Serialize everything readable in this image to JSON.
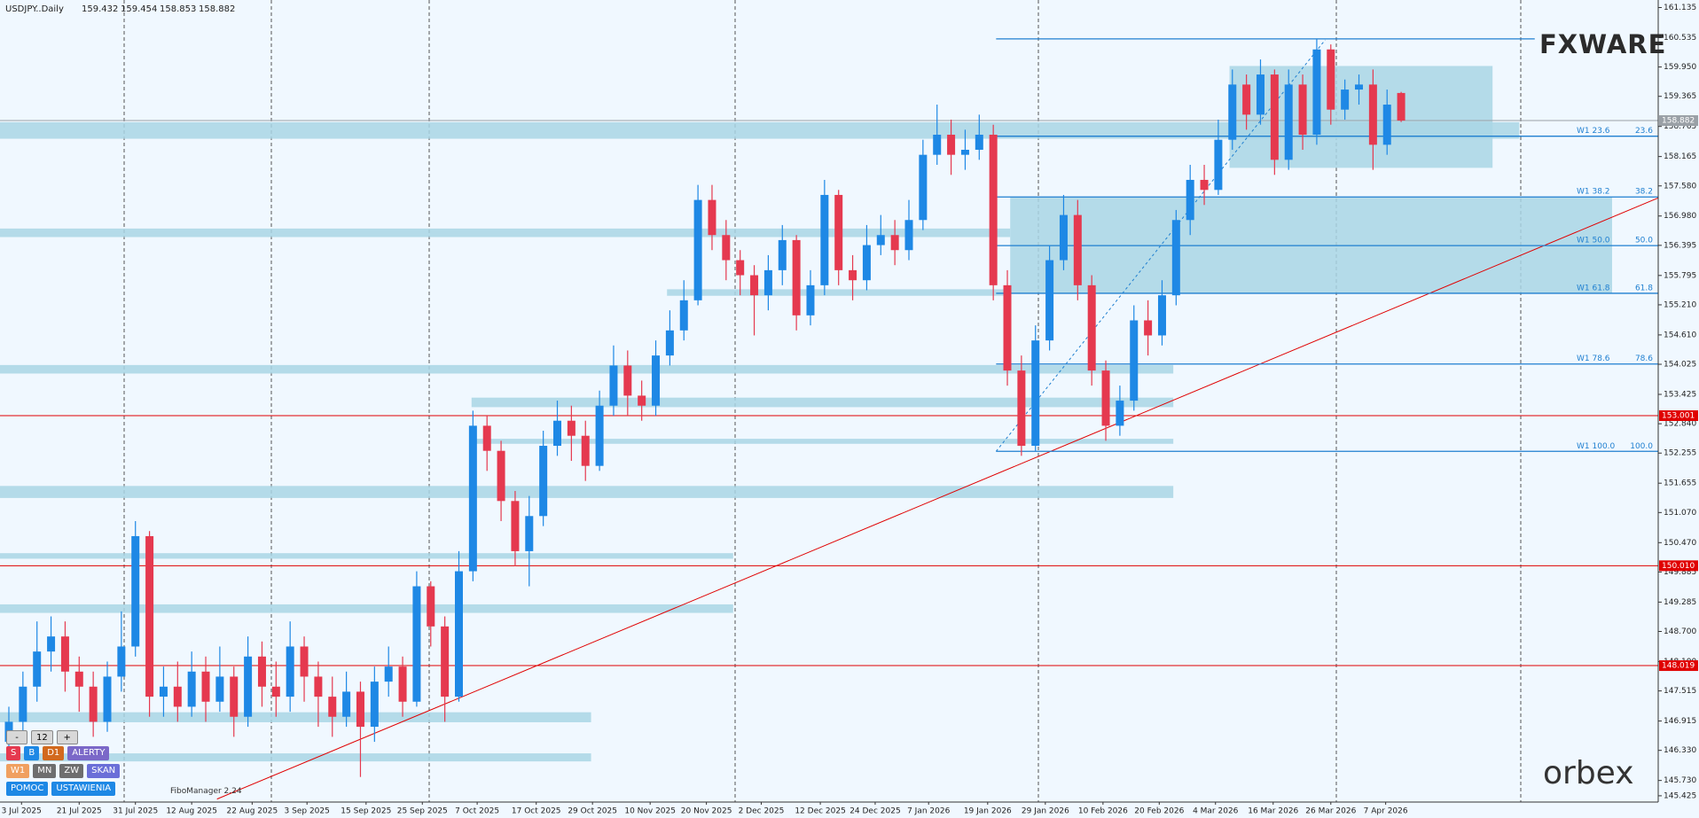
{
  "chart_data": {
    "type": "candlestick",
    "title": "USDJPY..Daily",
    "up_color": "#1e88e5",
    "down_color": "#e5394f",
    "open": [
      146.5,
      146.9,
      147.6,
      148.3,
      148.6,
      147.9,
      147.6,
      146.9,
      147.8,
      148.4,
      150.6,
      147.4,
      147.6,
      147.2,
      147.9,
      147.3,
      147.8,
      147.0,
      148.2,
      147.6,
      147.4,
      148.4,
      147.8,
      147.4,
      147.0,
      147.5,
      146.8,
      147.7,
      148.0,
      147.3,
      149.6,
      148.8,
      147.4,
      149.9,
      152.8,
      152.3,
      151.3,
      150.3,
      151.0,
      152.4,
      152.9,
      152.6,
      152.0,
      153.2,
      154.0,
      153.4,
      153.2,
      154.2,
      154.7,
      155.3,
      157.3,
      156.6,
      156.1,
      155.8,
      155.4,
      155.9,
      156.5,
      155.0,
      155.6,
      157.4,
      155.9,
      155.7,
      156.4,
      156.6,
      156.3,
      156.9,
      158.2,
      158.6,
      158.2,
      158.3,
      158.6,
      155.6,
      153.9,
      152.4,
      154.5,
      156.1,
      157.0,
      155.6,
      153.9,
      152.8,
      153.3,
      154.9,
      154.6,
      155.4,
      156.9,
      157.7,
      157.5,
      158.5,
      159.6,
      159.0,
      159.8,
      158.1,
      159.6,
      158.6,
      160.3,
      159.1,
      159.5,
      159.6,
      158.4,
      159.432
    ],
    "high": [
      147.2,
      147.9,
      148.9,
      149.0,
      148.9,
      148.2,
      147.9,
      148.1,
      149.1,
      150.9,
      150.7,
      148.0,
      148.1,
      148.3,
      148.2,
      148.4,
      148.0,
      148.6,
      148.5,
      148.1,
      148.9,
      148.6,
      148.1,
      147.8,
      147.9,
      147.7,
      148.0,
      148.4,
      148.2,
      149.9,
      149.7,
      149.0,
      150.3,
      153.1,
      153.0,
      152.5,
      151.5,
      151.4,
      152.7,
      153.3,
      153.2,
      152.9,
      153.5,
      154.4,
      154.3,
      153.7,
      154.5,
      155.1,
      155.7,
      157.6,
      157.6,
      156.9,
      156.3,
      156.0,
      156.2,
      156.8,
      156.6,
      155.9,
      157.7,
      157.5,
      156.2,
      156.8,
      157.0,
      156.9,
      157.3,
      158.5,
      159.2,
      158.9,
      158.7,
      159.0,
      158.8,
      155.9,
      154.2,
      154.8,
      156.4,
      157.4,
      157.3,
      155.8,
      154.1,
      153.6,
      155.2,
      155.3,
      155.7,
      157.1,
      158.0,
      158.0,
      158.9,
      159.9,
      159.8,
      160.1,
      159.9,
      159.9,
      159.8,
      160.5,
      160.4,
      159.7,
      159.8,
      159.9,
      159.5,
      159.454
    ],
    "low": [
      146.2,
      146.6,
      147.3,
      147.9,
      147.5,
      147.1,
      146.6,
      146.7,
      147.5,
      148.2,
      147.0,
      147.0,
      146.9,
      147.0,
      146.9,
      147.1,
      146.6,
      146.8,
      147.2,
      147.0,
      147.1,
      147.3,
      146.8,
      146.6,
      146.8,
      145.8,
      146.5,
      147.4,
      147.0,
      147.2,
      148.4,
      146.9,
      147.3,
      149.7,
      151.9,
      150.9,
      150.0,
      149.6,
      150.8,
      152.2,
      152.1,
      151.7,
      151.9,
      153.0,
      153.0,
      152.9,
      153.0,
      154.0,
      154.5,
      155.2,
      156.3,
      155.7,
      155.4,
      154.6,
      155.1,
      155.6,
      154.7,
      154.8,
      155.4,
      155.6,
      155.3,
      155.5,
      156.2,
      156.0,
      156.1,
      156.7,
      158.0,
      157.8,
      157.9,
      158.1,
      155.3,
      153.6,
      152.2,
      152.3,
      154.3,
      155.9,
      155.3,
      153.6,
      152.5,
      152.6,
      153.1,
      154.2,
      154.4,
      155.2,
      156.6,
      157.2,
      157.4,
      158.3,
      158.7,
      158.8,
      157.8,
      157.9,
      158.3,
      158.4,
      158.8,
      158.9,
      159.2,
      157.9,
      158.2,
      158.853
    ],
    "close": [
      146.9,
      147.6,
      148.3,
      148.6,
      147.9,
      147.6,
      146.9,
      147.8,
      148.4,
      150.6,
      147.4,
      147.6,
      147.2,
      147.9,
      147.3,
      147.8,
      147.0,
      148.2,
      147.6,
      147.4,
      148.4,
      147.8,
      147.4,
      147.0,
      147.5,
      146.8,
      147.7,
      148.0,
      147.3,
      149.6,
      148.8,
      147.4,
      149.9,
      152.8,
      152.3,
      151.3,
      150.3,
      151.0,
      152.4,
      152.9,
      152.6,
      152.0,
      153.2,
      154.0,
      153.4,
      153.2,
      154.2,
      154.7,
      155.3,
      157.3,
      156.6,
      156.1,
      155.8,
      155.4,
      155.9,
      156.5,
      155.0,
      155.6,
      157.4,
      155.9,
      155.7,
      156.4,
      156.6,
      156.3,
      156.9,
      158.2,
      158.6,
      158.2,
      158.3,
      158.6,
      155.6,
      153.9,
      152.4,
      154.5,
      156.1,
      157.0,
      155.6,
      153.9,
      152.8,
      153.3,
      154.9,
      154.6,
      155.4,
      156.9,
      157.7,
      157.5,
      158.5,
      159.6,
      159.0,
      159.8,
      158.1,
      159.6,
      158.6,
      160.3,
      159.1,
      159.5,
      159.6,
      158.4,
      159.2,
      158.882
    ],
    "xlim": [
      -0.63,
      117.28
    ],
    "xticks": [
      {
        "value": 0.9,
        "label": "3 Jul 2025"
      },
      {
        "value": 5.0,
        "label": "21 Jul 2025"
      },
      {
        "value": 9.0,
        "label": "31 Jul 2025"
      },
      {
        "value": 13.0,
        "label": "12 Aug 2025"
      },
      {
        "value": 17.3,
        "label": "22 Aug 2025"
      },
      {
        "value": 21.2,
        "label": "3 Sep 2025"
      },
      {
        "value": 25.4,
        "label": "15 Sep 2025"
      },
      {
        "value": 29.4,
        "label": "25 Sep 2025"
      },
      {
        "value": 33.3,
        "label": "7 Oct 2025"
      },
      {
        "value": 37.5,
        "label": "17 Oct 2025"
      },
      {
        "value": 41.5,
        "label": "29 Oct 2025"
      },
      {
        "value": 45.6,
        "label": "10 Nov 2025"
      },
      {
        "value": 49.6,
        "label": "20 Nov 2025"
      },
      {
        "value": 53.5,
        "label": "2 Dec 2025"
      },
      {
        "value": 57.7,
        "label": "12 Dec 2025"
      },
      {
        "value": 61.6,
        "label": "24 Dec 2025"
      },
      {
        "value": 65.4,
        "label": "7 Jan 2026"
      },
      {
        "value": 69.6,
        "label": "19 Jan 2026"
      },
      {
        "value": 73.7,
        "label": "29 Jan 2026"
      },
      {
        "value": 77.8,
        "label": "10 Feb 2026"
      },
      {
        "value": 81.8,
        "label": "20 Feb 2026"
      },
      {
        "value": 85.8,
        "label": "4 Mar 2026"
      },
      {
        "value": 89.9,
        "label": "16 Mar 2026"
      },
      {
        "value": 94.0,
        "label": "26 Mar 2026"
      },
      {
        "value": 97.9,
        "label": "7 Apr 2026"
      }
    ],
    "ylim": [
      145.3,
      161.285
    ],
    "yticks": [
      161.135,
      160.535,
      {
        "value": 159.95,
        "label": "159.950"
      },
      159.365,
      158.765,
      158.165,
      {
        "value": 157.58,
        "label": "157.580"
      },
      {
        "value": 156.98,
        "label": "156.980"
      },
      156.395,
      155.795,
      {
        "value": 155.21,
        "label": "155.210"
      },
      {
        "value": 154.61,
        "label": "154.610"
      },
      154.025,
      153.425,
      {
        "value": 152.84,
        "label": "152.840"
      },
      152.255,
      151.655,
      {
        "value": 151.07,
        "label": "151.070"
      },
      {
        "value": 150.47,
        "label": "150.470"
      },
      149.885,
      149.285,
      {
        "value": 148.7,
        "label": "148.700"
      },
      {
        "value": 148.1,
        "label": "148.100"
      },
      147.515,
      146.915,
      {
        "value": 146.33,
        "label": "146.330"
      },
      {
        "value": 145.73,
        "label": "145.730"
      },
      145.425
    ],
    "zone_color": "#a9d6e5",
    "zones": [
      {
        "low": 158.52,
        "high": 158.85,
        "start": -0.63,
        "end": 107.4
      },
      {
        "low": 157.94,
        "high": 159.97,
        "start": 86.8,
        "end": 105.5
      },
      {
        "low": 155.44,
        "high": 157.36,
        "start": 71.2,
        "end": 114.0
      },
      {
        "low": 156.56,
        "high": 156.73,
        "start": -0.63,
        "end": 71.2
      },
      {
        "low": 155.39,
        "high": 155.52,
        "start": 46.8,
        "end": 71.2
      },
      {
        "low": 153.84,
        "high": 154.01,
        "start": -0.63,
        "end": 82.8
      },
      {
        "low": 153.17,
        "high": 153.36,
        "start": 32.9,
        "end": 82.8
      },
      {
        "low": 152.44,
        "high": 152.54,
        "start": 32.9,
        "end": 82.8
      },
      {
        "low": 151.36,
        "high": 151.6,
        "start": -0.63,
        "end": 82.8
      },
      {
        "low": 150.15,
        "high": 150.26,
        "start": -0.63,
        "end": 51.5
      },
      {
        "low": 149.07,
        "high": 149.24,
        "start": -0.63,
        "end": 51.5
      },
      {
        "low": 146.89,
        "high": 147.09,
        "start": -0.63,
        "end": 41.4
      },
      {
        "low": 146.11,
        "high": 146.27,
        "start": -0.63,
        "end": 41.4
      }
    ],
    "levels": [
      {
        "price": 158.882,
        "color": "#9aa0a6"
      },
      {
        "price": 153.001,
        "color": "#e00000"
      },
      {
        "price": 150.01,
        "label": "150.010",
        "color": "#e00000"
      },
      {
        "price": 148.019,
        "color": "#e00000"
      }
    ],
    "fib": {
      "color": "#1f7fd0",
      "top": {
        "price": 160.51,
        "start": 70.2,
        "end": 108.5
      },
      "lines": [
        {
          "price": 158.57,
          "start": 70.2,
          "end": 117.28,
          "name": "W1 23.6",
          "level": "23.6"
        },
        {
          "price": 157.36,
          "start": 70.2,
          "end": 117.28,
          "name": "W1 38.2",
          "level": "38.2"
        },
        {
          "price": 156.39,
          "start": 70.2,
          "end": 117.28,
          "name": "W1 50.0",
          "level": "50.0"
        },
        {
          "price": 155.44,
          "start": 70.2,
          "end": 117.28,
          "name": "W1 61.8",
          "level": "61.8"
        },
        {
          "price": 154.03,
          "start": 70.2,
          "end": 117.28,
          "name": "W1 78.6",
          "level": "78.6"
        },
        {
          "price": 152.29,
          "start": 70.2,
          "end": 117.28,
          "name": "W1 100.0",
          "level": "100.0"
        }
      ],
      "diagonal": {
        "x": [
          70.2,
          93.6
        ],
        "y": [
          152.29,
          160.49
        ]
      }
    },
    "trendline": {
      "color": "#e00000",
      "x": [
        14.8,
        117.28
      ],
      "y": [
        145.36,
        157.34
      ]
    }
  },
  "ui": {
    "zoom": [
      "-",
      "12",
      "+"
    ],
    "buttons": [
      [
        {
          "text": "S",
          "color": "#e5394f"
        },
        {
          "text": "B",
          "color": "#1e88e5"
        },
        {
          "text": "D1",
          "color": "#d2691e"
        },
        {
          "text": "ALERTY",
          "color": "#7b68c8"
        }
      ],
      [
        {
          "text": "W1",
          "color": "#f0a060"
        },
        {
          "text": "MN",
          "color": "#6e6e6e"
        },
        {
          "text": "ZW",
          "color": "#6e6e6e"
        },
        {
          "text": "SKAN",
          "color": "#6a6fd8"
        }
      ],
      [
        {
          "text": "POMOC",
          "color": "#1e88e5"
        },
        {
          "text": "USTAWIENIA",
          "color": "#1e88e5"
        }
      ]
    ],
    "footer": "FiboManager 2.24",
    "brand": "FXWARE",
    "broker": "orbex"
  }
}
